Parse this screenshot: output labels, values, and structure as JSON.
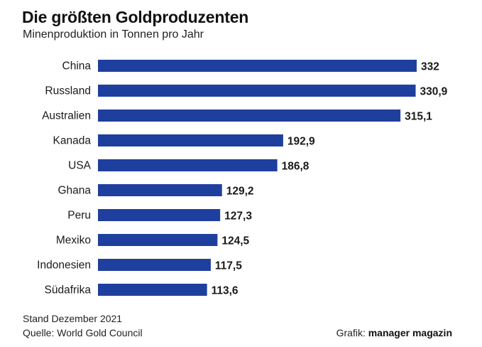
{
  "header": {
    "title": "Die größten Goldproduzenten",
    "subtitle": "Minenproduktion in Tonnen pro Jahr"
  },
  "footer": {
    "status": "Stand Dezember 2021",
    "source": "Quelle: World Gold Council",
    "credit_label": "Grafik:",
    "credit_brand": "manager magazin"
  },
  "chart_data": {
    "type": "bar",
    "orientation": "horizontal",
    "title": "Die größten Goldproduzenten",
    "subtitle": "Minenproduktion in Tonnen pro Jahr",
    "categories": [
      "China",
      "Russland",
      "Australien",
      "Kanada",
      "USA",
      "Ghana",
      "Peru",
      "Mexiko",
      "Indonesien",
      "Südafrika"
    ],
    "values": [
      332,
      330.9,
      315.1,
      192.9,
      186.8,
      129.2,
      127.3,
      124.5,
      117.5,
      113.6
    ],
    "value_labels": [
      "332",
      "330,9",
      "315,1",
      "192,9",
      "186,8",
      "129,2",
      "127,3",
      "124,5",
      "117,5",
      "113,6"
    ],
    "xlim": [
      0,
      332
    ],
    "grid": false,
    "bar_color": "#1f3f9f"
  }
}
